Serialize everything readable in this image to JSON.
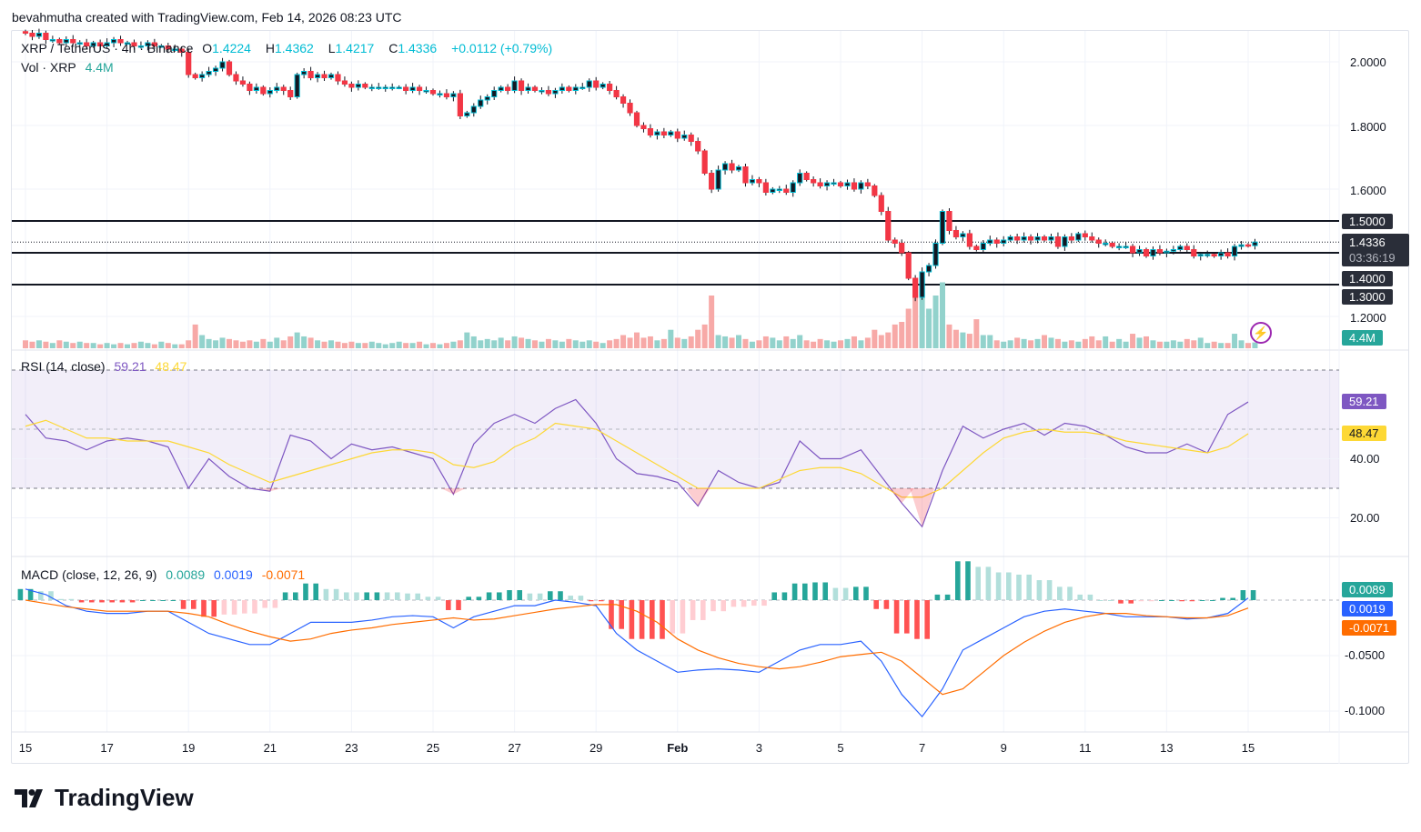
{
  "caption": "bevahmutha created with TradingView.com, Feb 14, 2026 08:23 UTC",
  "symbol": {
    "title": "XRP / TetherUS · 4h · Binance",
    "o_label": "O",
    "o": "1.4224",
    "h_label": "H",
    "h": "1.4362",
    "l_label": "L",
    "l": "1.4217",
    "c_label": "C",
    "c": "1.4336",
    "change": "+0.0112 (+0.79%)"
  },
  "volume": {
    "title": "Vol · XRP",
    "value": "4.4M"
  },
  "price_axis": {
    "ticks": [
      "2.0000",
      "1.8000",
      "1.6000",
      "1.2000"
    ],
    "levels": [
      "1.5000",
      "1.4000",
      "1.3000"
    ],
    "last_price": "1.4336",
    "countdown": "03:36:19",
    "volume_tag": "4.4M"
  },
  "rsi": {
    "title": "RSI (14, close)",
    "value": "59.21",
    "ma_value": "48.47",
    "ticks": [
      "40.00",
      "20.00"
    ]
  },
  "macd": {
    "title": "MACD (close, 12, 26, 9)",
    "hist": "0.0089",
    "macd": "0.0019",
    "signal": "-0.0071",
    "ticks": [
      "-0.0500",
      "-0.1000"
    ]
  },
  "x_axis": [
    "15",
    "17",
    "19",
    "21",
    "23",
    "25",
    "27",
    "29",
    "Feb",
    "3",
    "5",
    "7",
    "9",
    "11",
    "13",
    "15"
  ],
  "colors": {
    "up": "#00bcd4",
    "down": "#f23645",
    "vol_up": "#92d2cc",
    "vol_down": "#f7a9a7",
    "rsi": "#7e57c2",
    "rsi_ma": "#fdd835",
    "macd": "#2962ff",
    "signal": "#ff6d00",
    "hist_up": "#26a69a",
    "hist_up_fade": "#b2dfdb",
    "hist_down": "#ff5252",
    "hist_down_fade": "#ffcdd2"
  },
  "footer": {
    "brand": "TradingView"
  },
  "chart_data": {
    "type": "candlestick",
    "interval": "4h",
    "start": "Jan 15",
    "price_range": [
      1.15,
      2.1
    ],
    "horizontal_levels": [
      1.5,
      1.4,
      1.3
    ],
    "closes": [
      2.09,
      2.08,
      2.09,
      2.07,
      2.07,
      2.06,
      2.07,
      2.06,
      2.06,
      2.05,
      2.06,
      2.05,
      2.06,
      2.07,
      2.06,
      2.06,
      2.05,
      2.05,
      2.06,
      2.05,
      2.05,
      2.04,
      2.04,
      2.03,
      1.96,
      1.95,
      1.96,
      1.97,
      1.98,
      2.0,
      1.96,
      1.94,
      1.93,
      1.91,
      1.92,
      1.9,
      1.91,
      1.92,
      1.91,
      1.89,
      1.96,
      1.97,
      1.95,
      1.96,
      1.95,
      1.96,
      1.94,
      1.93,
      1.92,
      1.93,
      1.92,
      1.92,
      1.92,
      1.92,
      1.92,
      1.92,
      1.91,
      1.92,
      1.91,
      1.91,
      1.9,
      1.9,
      1.89,
      1.9,
      1.83,
      1.84,
      1.86,
      1.88,
      1.89,
      1.91,
      1.92,
      1.91,
      1.94,
      1.91,
      1.92,
      1.91,
      1.91,
      1.9,
      1.91,
      1.92,
      1.91,
      1.92,
      1.92,
      1.94,
      1.92,
      1.93,
      1.91,
      1.89,
      1.87,
      1.84,
      1.8,
      1.79,
      1.77,
      1.78,
      1.77,
      1.78,
      1.76,
      1.77,
      1.75,
      1.72,
      1.65,
      1.6,
      1.66,
      1.68,
      1.66,
      1.67,
      1.62,
      1.63,
      1.62,
      1.59,
      1.6,
      1.6,
      1.59,
      1.62,
      1.65,
      1.63,
      1.62,
      1.61,
      1.62,
      1.62,
      1.61,
      1.62,
      1.6,
      1.62,
      1.61,
      1.58,
      1.53,
      1.44,
      1.43,
      1.4,
      1.32,
      1.26,
      1.34,
      1.36,
      1.43,
      1.53,
      1.47,
      1.45,
      1.46,
      1.42,
      1.41,
      1.43,
      1.44,
      1.43,
      1.44,
      1.45,
      1.44,
      1.45,
      1.44,
      1.45,
      1.44,
      1.45,
      1.42,
      1.45,
      1.44,
      1.46,
      1.45,
      1.44,
      1.43,
      1.43,
      1.42,
      1.42,
      1.42,
      1.4,
      1.41,
      1.39,
      1.41,
      1.4,
      1.405,
      1.41,
      1.42,
      1.41,
      1.39,
      1.395,
      1.395,
      1.39,
      1.4,
      1.39,
      1.42,
      1.425,
      1.4224,
      1.4336
    ],
    "volumes_m": [
      6,
      5,
      6,
      5,
      4,
      6,
      5,
      4,
      5,
      4,
      4,
      3,
      4,
      3,
      4,
      3,
      4,
      5,
      4,
      3,
      5,
      4,
      3,
      3,
      6,
      18,
      10,
      7,
      6,
      8,
      7,
      6,
      5,
      6,
      5,
      7,
      5,
      8,
      6,
      9,
      12,
      9,
      8,
      6,
      5,
      6,
      5,
      4,
      5,
      4,
      4,
      5,
      4,
      3,
      4,
      5,
      4,
      4,
      5,
      3,
      4,
      3,
      4,
      5,
      6,
      12,
      9,
      6,
      7,
      6,
      8,
      6,
      9,
      8,
      7,
      6,
      5,
      7,
      6,
      5,
      7,
      6,
      5,
      6,
      5,
      4,
      6,
      7,
      10,
      8,
      12,
      8,
      9,
      6,
      7,
      14,
      8,
      7,
      9,
      14,
      18,
      40,
      10,
      9,
      8,
      10,
      7,
      5,
      6,
      9,
      8,
      6,
      9,
      7,
      10,
      6,
      5,
      7,
      6,
      5,
      6,
      7,
      9,
      6,
      8,
      14,
      10,
      12,
      18,
      20,
      30,
      40,
      48,
      30,
      40,
      50,
      18,
      14,
      12,
      11,
      22,
      10,
      10,
      6,
      5,
      6,
      8,
      7,
      6,
      7,
      10,
      8,
      7,
      5,
      6,
      5,
      7,
      9,
      6,
      9,
      5,
      7,
      5,
      11,
      8,
      9,
      6,
      5,
      5,
      6,
      5,
      7,
      6,
      8,
      4,
      5,
      4,
      4,
      11,
      6,
      4,
      4.4
    ],
    "indicator_interval": "12h",
    "rsi": [
      55,
      47,
      46,
      43,
      46,
      47,
      46,
      44,
      30,
      40,
      34,
      30,
      29,
      48,
      46,
      40,
      45,
      43,
      44,
      42,
      40,
      28,
      45,
      52,
      55,
      52,
      57,
      60,
      52,
      40,
      35,
      34,
      32,
      24,
      36,
      32,
      30,
      32,
      46,
      40,
      40,
      43,
      34,
      25,
      17,
      36,
      51,
      47,
      50,
      52,
      48,
      52,
      51,
      48,
      44,
      42,
      42,
      45,
      42,
      55,
      59.21
    ],
    "rsi_ma": [
      51,
      53,
      50,
      47,
      47,
      46,
      46,
      46,
      44,
      42,
      38,
      35,
      32,
      34,
      36,
      38,
      40,
      42,
      43,
      43,
      42,
      38,
      37,
      39,
      44,
      47,
      52,
      51,
      50,
      46,
      42,
      38,
      34,
      30,
      30,
      30,
      30,
      33,
      36,
      37,
      37,
      35,
      31,
      27,
      27,
      30,
      36,
      42,
      47,
      49,
      50,
      49,
      49,
      48,
      46,
      45,
      44,
      43,
      42,
      44,
      48.47
    ],
    "rsi_bands": [
      70,
      50,
      30
    ],
    "rsi_range": [
      10,
      80
    ],
    "macd_line": [
      0.01,
      0.005,
      -0.005,
      -0.01,
      -0.012,
      -0.012,
      -0.01,
      -0.01,
      -0.02,
      -0.03,
      -0.035,
      -0.04,
      -0.04,
      -0.03,
      -0.02,
      -0.02,
      -0.02,
      -0.018,
      -0.015,
      -0.014,
      -0.015,
      -0.025,
      -0.015,
      -0.01,
      -0.005,
      -0.005,
      0.0,
      -0.002,
      -0.005,
      -0.03,
      -0.045,
      -0.055,
      -0.065,
      -0.063,
      -0.062,
      -0.063,
      -0.065,
      -0.055,
      -0.045,
      -0.04,
      -0.04,
      -0.037,
      -0.055,
      -0.085,
      -0.105,
      -0.08,
      -0.045,
      -0.035,
      -0.025,
      -0.015,
      -0.01,
      -0.008,
      -0.01,
      -0.012,
      -0.015,
      -0.015,
      -0.015,
      -0.017,
      -0.016,
      -0.012,
      0.0019
    ],
    "signal_line": [
      0.0,
      -0.003,
      -0.006,
      -0.008,
      -0.01,
      -0.01,
      -0.01,
      -0.01,
      -0.012,
      -0.015,
      -0.022,
      -0.028,
      -0.033,
      -0.037,
      -0.035,
      -0.03,
      -0.027,
      -0.025,
      -0.022,
      -0.02,
      -0.018,
      -0.016,
      -0.018,
      -0.017,
      -0.014,
      -0.011,
      -0.008,
      -0.006,
      -0.004,
      -0.004,
      -0.01,
      -0.02,
      -0.035,
      -0.045,
      -0.052,
      -0.057,
      -0.06,
      -0.062,
      -0.06,
      -0.056,
      -0.051,
      -0.049,
      -0.047,
      -0.055,
      -0.07,
      -0.085,
      -0.08,
      -0.065,
      -0.05,
      -0.038,
      -0.028,
      -0.02,
      -0.015,
      -0.012,
      -0.012,
      -0.014,
      -0.015,
      -0.016,
      -0.016,
      -0.014,
      -0.0071
    ]
  }
}
